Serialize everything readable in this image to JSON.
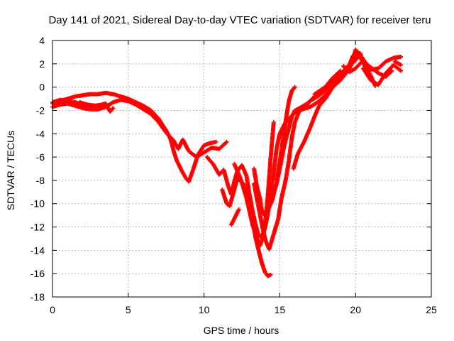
{
  "chart_data": {
    "type": "scatter",
    "title": "Day 141 of 2021, Sidereal Day-to-day VTEC variation (SDTVAR) for receiver teru",
    "xlabel": "GPS time / hours",
    "ylabel": "SDTVAR / TECUs",
    "xlim": [
      0,
      25
    ],
    "ylim": [
      -18,
      4
    ],
    "xticks": [
      "0",
      "5",
      "10",
      "15",
      "20",
      "25"
    ],
    "yticks": [
      "-18",
      "-16",
      "-14",
      "-12",
      "-10",
      "-8",
      "-6",
      "-4",
      "-2",
      "0",
      "2",
      "4"
    ],
    "grid": true,
    "marker": "plus",
    "color": "#ff0000",
    "series": [
      {
        "points": [
          [
            0.0,
            -1.4
          ],
          [
            0.5,
            -1.2
          ],
          [
            1.0,
            -1.0
          ],
          [
            1.5,
            -0.8
          ],
          [
            2.0,
            -0.7
          ],
          [
            2.5,
            -0.6
          ],
          [
            3.0,
            -0.6
          ],
          [
            3.5,
            -0.5
          ],
          [
            4.0,
            -0.6
          ],
          [
            4.5,
            -0.8
          ],
          [
            5.0,
            -1.0
          ],
          [
            5.5,
            -1.3
          ],
          [
            6.0,
            -1.6
          ],
          [
            6.5,
            -2.0
          ],
          [
            7.0,
            -2.7
          ],
          [
            7.5,
            -3.7
          ],
          [
            7.8,
            -4.5
          ],
          [
            8.0,
            -5.5
          ],
          [
            8.2,
            -6.3
          ],
          [
            8.5,
            -7.1
          ],
          [
            8.8,
            -7.8
          ],
          [
            9.0,
            -8.1
          ],
          [
            9.3,
            -7.0
          ],
          [
            9.6,
            -5.8
          ],
          [
            10.0,
            -5.0
          ],
          [
            10.4,
            -4.8
          ],
          [
            10.8,
            -4.7
          ]
        ]
      },
      {
        "points": [
          [
            0.0,
            -1.7
          ],
          [
            0.5,
            -1.5
          ],
          [
            1.0,
            -1.4
          ],
          [
            1.5,
            -1.6
          ],
          [
            2.0,
            -1.8
          ],
          [
            2.5,
            -1.9
          ],
          [
            3.0,
            -1.9
          ],
          [
            3.5,
            -1.7
          ],
          [
            4.0,
            -1.3
          ],
          [
            4.5,
            -1.1
          ],
          [
            5.0,
            -1.2
          ],
          [
            5.5,
            -1.5
          ],
          [
            6.0,
            -1.9
          ],
          [
            6.5,
            -2.3
          ],
          [
            7.0,
            -3.0
          ],
          [
            7.5,
            -3.9
          ],
          [
            8.0,
            -4.6
          ],
          [
            8.3,
            -5.3
          ],
          [
            8.6,
            -4.5
          ],
          [
            9.0,
            -5.5
          ],
          [
            9.5,
            -6.0
          ],
          [
            10.0,
            -5.6
          ],
          [
            10.5,
            -5.2
          ],
          [
            11.0,
            -5.3
          ],
          [
            11.5,
            -4.7
          ]
        ]
      },
      {
        "points": [
          [
            0.0,
            -1.3
          ],
          [
            0.5,
            -1.1
          ],
          [
            1.0,
            -1.2
          ],
          [
            1.5,
            -1.3
          ],
          [
            2.0,
            -1.5
          ],
          [
            2.5,
            -1.6
          ],
          [
            3.0,
            -1.6
          ],
          [
            3.5,
            -1.4
          ],
          [
            3.8,
            -2.1
          ],
          [
            4.0,
            -1.8
          ]
        ]
      },
      {
        "points": [
          [
            10.2,
            -6.0
          ],
          [
            10.6,
            -6.6
          ],
          [
            11.0,
            -7.5
          ],
          [
            11.3,
            -7.1
          ],
          [
            11.6,
            -8.5
          ],
          [
            11.8,
            -9.2
          ],
          [
            12.0,
            -8.1
          ],
          [
            12.2,
            -7.2
          ],
          [
            12.5,
            -6.7
          ],
          [
            12.8,
            -7.6
          ],
          [
            13.0,
            -9.2
          ],
          [
            13.2,
            -10.6
          ],
          [
            13.4,
            -11.8
          ],
          [
            13.6,
            -12.7
          ],
          [
            13.8,
            -12.9
          ],
          [
            14.0,
            -12.2
          ],
          [
            14.2,
            -11.0
          ],
          [
            14.4,
            -9.2
          ],
          [
            14.6,
            -7.3
          ],
          [
            14.8,
            -5.2
          ],
          [
            15.0,
            -4.0
          ],
          [
            15.3,
            -3.2
          ],
          [
            15.6,
            -2.7
          ],
          [
            16.0,
            -2.2
          ],
          [
            16.5,
            -1.9
          ],
          [
            17.0,
            -1.7
          ],
          [
            17.5,
            -1.3
          ],
          [
            18.0,
            -0.7
          ],
          [
            18.5,
            0.0
          ],
          [
            19.0,
            0.6
          ],
          [
            19.5,
            1.4
          ],
          [
            19.8,
            2.1
          ],
          [
            20.0,
            3.2
          ],
          [
            20.3,
            2.8
          ],
          [
            20.6,
            2.2
          ],
          [
            21.0,
            1.5
          ],
          [
            21.5,
            1.6
          ],
          [
            22.0,
            2.2
          ],
          [
            22.5,
            2.5
          ],
          [
            23.0,
            2.6
          ]
        ]
      },
      {
        "points": [
          [
            11.2,
            -8.8
          ],
          [
            11.5,
            -10.0
          ],
          [
            11.7,
            -10.2
          ],
          [
            12.2,
            -7.8
          ],
          [
            12.6,
            -8.3
          ],
          [
            13.0,
            -9.8
          ],
          [
            13.2,
            -11.3
          ],
          [
            13.4,
            -12.9
          ],
          [
            13.6,
            -14.0
          ],
          [
            13.8,
            -15.0
          ],
          [
            14.0,
            -15.8
          ],
          [
            14.2,
            -16.2
          ],
          [
            14.4,
            -16.1
          ]
        ]
      },
      {
        "points": [
          [
            11.8,
            -11.8
          ],
          [
            12.3,
            -10.5
          ]
        ]
      },
      {
        "points": [
          [
            12.0,
            -6.6
          ],
          [
            12.4,
            -7.8
          ],
          [
            12.8,
            -9.5
          ],
          [
            13.2,
            -11.8
          ],
          [
            13.5,
            -13.0
          ],
          [
            13.7,
            -13.6
          ],
          [
            13.9,
            -12.8
          ],
          [
            14.0,
            -12.0
          ],
          [
            14.2,
            -9.5
          ],
          [
            14.4,
            -6.0
          ],
          [
            14.5,
            -4.5
          ],
          [
            14.6,
            -3.0
          ]
        ]
      },
      {
        "points": [
          [
            13.3,
            -7.0
          ],
          [
            13.5,
            -8.6
          ],
          [
            13.7,
            -9.6
          ],
          [
            13.8,
            -10.5
          ],
          [
            14.0,
            -11.0
          ],
          [
            14.2,
            -10.6
          ],
          [
            14.5,
            -9.7
          ],
          [
            14.8,
            -8.2
          ],
          [
            15.0,
            -7.0
          ],
          [
            15.3,
            -5.0
          ],
          [
            15.6,
            -3.5
          ],
          [
            15.8,
            -2.5
          ],
          [
            16.0,
            -2.0
          ],
          [
            16.3,
            -1.8
          ],
          [
            16.7,
            -1.5
          ],
          [
            17.0,
            -1.2
          ],
          [
            17.5,
            -0.8
          ],
          [
            18.0,
            -0.3
          ],
          [
            18.5,
            0.4
          ],
          [
            19.0,
            1.0
          ]
        ]
      },
      {
        "points": [
          [
            13.3,
            -8.3
          ],
          [
            13.6,
            -10.3
          ],
          [
            13.9,
            -12.3
          ],
          [
            14.1,
            -13.3
          ],
          [
            14.3,
            -13.9
          ],
          [
            14.6,
            -12.6
          ],
          [
            14.9,
            -11.3
          ],
          [
            15.1,
            -9.6
          ],
          [
            15.4,
            -7.9
          ],
          [
            15.6,
            -6.3
          ],
          [
            15.8,
            -4.3
          ],
          [
            16.0,
            -3.0
          ],
          [
            16.3,
            -2.0
          ],
          [
            16.6,
            -1.8
          ],
          [
            17.0,
            -1.2
          ],
          [
            17.5,
            -0.5
          ],
          [
            18.0,
            0.0
          ],
          [
            18.5,
            0.5
          ],
          [
            19.0,
            1.1
          ],
          [
            19.5,
            1.8
          ],
          [
            20.0,
            2.3
          ],
          [
            20.3,
            2.9
          ],
          [
            20.6,
            1.8
          ],
          [
            21.0,
            1.0
          ],
          [
            21.3,
            0.1
          ]
        ]
      },
      {
        "points": [
          [
            14.8,
            -8.0
          ],
          [
            15.0,
            -6.4
          ],
          [
            15.2,
            -4.6
          ],
          [
            15.4,
            -2.8
          ],
          [
            15.6,
            -1.2
          ],
          [
            15.8,
            -0.3
          ],
          [
            16.0,
            0.0
          ]
        ]
      },
      {
        "points": [
          [
            15.9,
            -7.0
          ],
          [
            16.2,
            -5.7
          ],
          [
            16.6,
            -4.7
          ],
          [
            17.0,
            -3.5
          ],
          [
            17.3,
            -2.5
          ],
          [
            17.6,
            -1.6
          ],
          [
            18.0,
            -1.0
          ],
          [
            18.5,
            0.0
          ],
          [
            19.0,
            0.8
          ],
          [
            19.5,
            1.6
          ],
          [
            19.8,
            2.6
          ],
          [
            20.0,
            3.0
          ],
          [
            20.5,
            2.2
          ],
          [
            21.0,
            1.7
          ],
          [
            21.5,
            1.2
          ],
          [
            22.0,
            0.9
          ],
          [
            22.4,
            1.4
          ]
        ]
      },
      {
        "points": [
          [
            17.3,
            -0.6
          ],
          [
            18.0,
            0.0
          ],
          [
            18.5,
            0.8
          ],
          [
            19.0,
            1.4
          ]
        ]
      },
      {
        "points": [
          [
            20.5,
            1.6
          ],
          [
            21.0,
            0.6
          ],
          [
            21.5,
            0.2
          ],
          [
            22.0,
            1.2
          ],
          [
            22.5,
            1.9
          ],
          [
            23.0,
            1.4
          ]
        ]
      },
      {
        "points": [
          [
            19.2,
            1.8
          ],
          [
            19.6,
            1.3
          ],
          [
            20.0,
            1.6
          ],
          [
            20.5,
            2.3
          ]
        ]
      },
      {
        "points": [
          [
            1.8,
            -1.3
          ],
          [
            2.3,
            -1.5
          ],
          [
            2.8,
            -1.6
          ],
          [
            3.3,
            -1.5
          ]
        ]
      },
      {
        "points": [
          [
            22.6,
            2.2
          ],
          [
            23.0,
            1.9
          ]
        ]
      }
    ]
  }
}
